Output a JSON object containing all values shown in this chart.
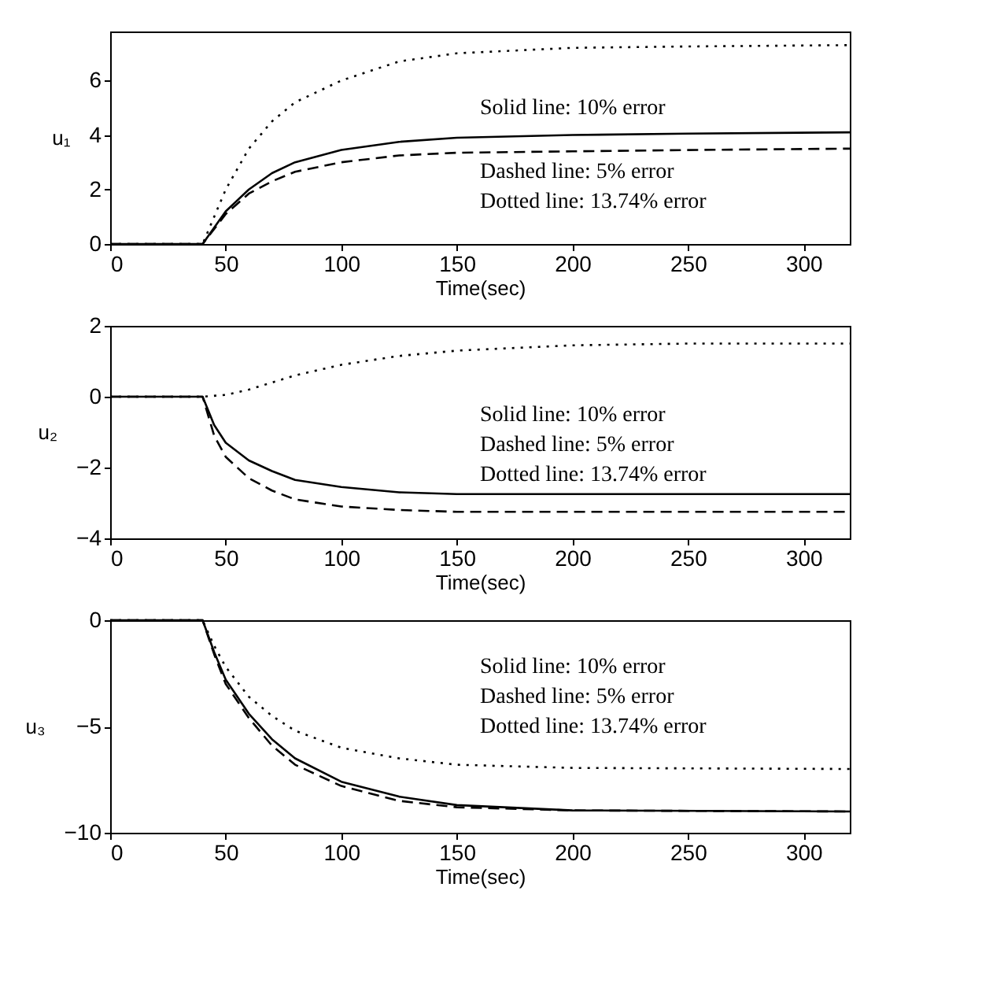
{
  "chart_data": [
    {
      "type": "line",
      "xlabel": "Time(sec)",
      "ylabel": "u₁",
      "xlim": [
        0,
        320
      ],
      "ylim": [
        0,
        7.8
      ],
      "xticks": [
        0,
        50,
        100,
        150,
        200,
        250,
        300
      ],
      "yticks": [
        0,
        2,
        4,
        6
      ],
      "grid": false,
      "legend": false,
      "annotations": [
        "Solid line:  10% error",
        "Dashed line:  5% error",
        "Dotted line:  13.74% error"
      ],
      "series": [
        {
          "color": "#000000",
          "line_style": "solid",
          "x": [
            0,
            40,
            50,
            60,
            70,
            80,
            100,
            125,
            150,
            200,
            250,
            320
          ],
          "values": [
            0,
            0,
            1.2,
            2.0,
            2.6,
            3.0,
            3.45,
            3.75,
            3.9,
            4.0,
            4.05,
            4.1
          ]
        },
        {
          "color": "#000000",
          "line_style": "dashed",
          "x": [
            0,
            40,
            50,
            60,
            70,
            80,
            100,
            125,
            150,
            200,
            250,
            320
          ],
          "values": [
            0,
            0,
            1.1,
            1.85,
            2.3,
            2.65,
            3.0,
            3.25,
            3.35,
            3.4,
            3.45,
            3.5
          ]
        },
        {
          "color": "#000000",
          "line_style": "dotted",
          "x": [
            0,
            40,
            45,
            50,
            60,
            70,
            80,
            100,
            125,
            150,
            200,
            250,
            320
          ],
          "values": [
            0,
            0,
            1,
            2,
            3.5,
            4.5,
            5.2,
            6.0,
            6.7,
            7.0,
            7.2,
            7.25,
            7.3
          ]
        }
      ]
    },
    {
      "type": "line",
      "xlabel": "Time(sec)",
      "ylabel": "u₂",
      "xlim": [
        0,
        320
      ],
      "ylim": [
        -4,
        2
      ],
      "xticks": [
        0,
        50,
        100,
        150,
        200,
        250,
        300
      ],
      "yticks": [
        -4,
        -2,
        0,
        2
      ],
      "grid": false,
      "legend": false,
      "annotations": [
        "Solid line:  10% error",
        "Dashed line:  5% error",
        "Dotted line:  13.74% error"
      ],
      "series": [
        {
          "color": "#000000",
          "line_style": "solid",
          "x": [
            0,
            40,
            45,
            50,
            60,
            70,
            80,
            100,
            125,
            150,
            200,
            320
          ],
          "values": [
            0,
            0,
            -0.8,
            -1.3,
            -1.8,
            -2.1,
            -2.35,
            -2.55,
            -2.7,
            -2.75,
            -2.75,
            -2.75
          ]
        },
        {
          "color": "#000000",
          "line_style": "dashed",
          "x": [
            0,
            40,
            45,
            50,
            60,
            70,
            80,
            100,
            125,
            150,
            200,
            320
          ],
          "values": [
            0,
            0,
            -1.1,
            -1.7,
            -2.3,
            -2.65,
            -2.9,
            -3.1,
            -3.2,
            -3.25,
            -3.25,
            -3.25
          ]
        },
        {
          "color": "#000000",
          "line_style": "dotted",
          "x": [
            0,
            40,
            50,
            60,
            80,
            100,
            125,
            150,
            200,
            250,
            320
          ],
          "values": [
            0,
            0,
            0.05,
            0.2,
            0.6,
            0.9,
            1.15,
            1.3,
            1.45,
            1.5,
            1.5
          ]
        }
      ]
    },
    {
      "type": "line",
      "xlabel": "Time(sec)",
      "ylabel": "u₃",
      "xlim": [
        0,
        320
      ],
      "ylim": [
        -10,
        0
      ],
      "xticks": [
        0,
        50,
        100,
        150,
        200,
        250,
        300
      ],
      "yticks": [
        -10,
        -5,
        0
      ],
      "grid": false,
      "legend": false,
      "annotations": [
        "Solid line:  10% error",
        "Dashed line:  5% error",
        "Dotted line:  13.74% error"
      ],
      "series": [
        {
          "color": "#000000",
          "line_style": "solid",
          "x": [
            0,
            40,
            45,
            50,
            60,
            70,
            80,
            100,
            125,
            150,
            200,
            320
          ],
          "values": [
            0,
            0,
            -1.5,
            -2.8,
            -4.4,
            -5.6,
            -6.5,
            -7.6,
            -8.3,
            -8.7,
            -8.95,
            -9.0
          ]
        },
        {
          "color": "#000000",
          "line_style": "dashed",
          "x": [
            0,
            40,
            45,
            50,
            60,
            70,
            80,
            100,
            125,
            150,
            200,
            320
          ],
          "values": [
            0,
            0,
            -1.6,
            -3.0,
            -4.6,
            -5.9,
            -6.8,
            -7.8,
            -8.5,
            -8.8,
            -8.95,
            -9.0
          ]
        },
        {
          "color": "#000000",
          "line_style": "dotted",
          "x": [
            0,
            40,
            45,
            50,
            60,
            70,
            80,
            100,
            125,
            150,
            200,
            320
          ],
          "values": [
            0,
            0,
            -1.2,
            -2.2,
            -3.6,
            -4.5,
            -5.2,
            -6.0,
            -6.5,
            -6.8,
            -6.95,
            -7.0
          ]
        }
      ]
    }
  ]
}
